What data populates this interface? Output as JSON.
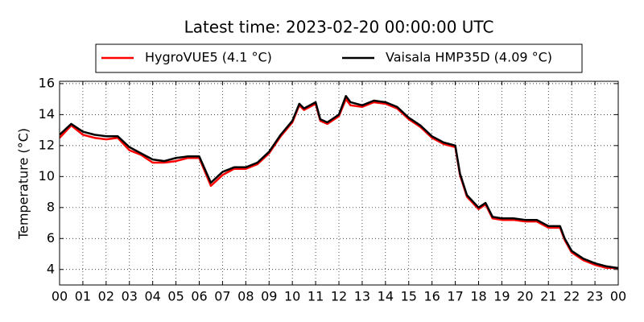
{
  "chart_data": {
    "type": "line",
    "title": "Latest time: 2023-02-20 00:00:00 UTC",
    "y_label": "Temperature (°C)",
    "x": [
      0,
      0.5,
      1,
      1.5,
      2,
      2.5,
      3,
      3.5,
      4,
      4.5,
      5,
      5.5,
      6,
      6.5,
      7,
      7.5,
      8,
      8.5,
      9,
      9.5,
      10,
      10.3,
      10.5,
      11,
      11.2,
      11.5,
      12,
      12.3,
      12.5,
      13,
      13.5,
      14,
      14.5,
      15,
      15.5,
      16,
      16.5,
      17,
      17.2,
      17.5,
      18,
      18.3,
      18.6,
      19,
      19.5,
      20,
      20.5,
      21,
      21.5,
      21.7,
      22,
      22.5,
      23,
      23.5,
      24
    ],
    "series": [
      {
        "name": "HygroVUE5 (4.1 °C)",
        "color": "#ff0000",
        "values": [
          12.5,
          13.3,
          12.7,
          12.5,
          12.4,
          12.5,
          11.7,
          11.4,
          10.9,
          10.9,
          11.0,
          11.2,
          11.2,
          9.4,
          10.1,
          10.5,
          10.5,
          10.8,
          11.5,
          12.6,
          13.5,
          14.6,
          14.3,
          14.7,
          13.6,
          13.4,
          13.9,
          15.0,
          14.6,
          14.5,
          14.8,
          14.7,
          14.4,
          13.7,
          13.2,
          12.5,
          12.1,
          11.9,
          10.1,
          8.7,
          7.9,
          8.2,
          7.3,
          7.2,
          7.2,
          7.1,
          7.1,
          6.7,
          6.7,
          5.9,
          5.1,
          4.6,
          4.3,
          4.1,
          4.1
        ]
      },
      {
        "name": "Vaisala HMP35D (4.09 °C)",
        "color": "#000000",
        "values": [
          12.7,
          13.4,
          12.9,
          12.7,
          12.6,
          12.6,
          11.9,
          11.5,
          11.1,
          11.0,
          11.2,
          11.3,
          11.3,
          9.6,
          10.3,
          10.6,
          10.6,
          10.9,
          11.6,
          12.7,
          13.6,
          14.7,
          14.4,
          14.8,
          13.7,
          13.5,
          14.0,
          15.2,
          14.8,
          14.6,
          14.9,
          14.8,
          14.5,
          13.8,
          13.3,
          12.6,
          12.2,
          12.0,
          10.2,
          8.8,
          8.0,
          8.3,
          7.4,
          7.3,
          7.3,
          7.2,
          7.2,
          6.8,
          6.8,
          6.0,
          5.2,
          4.7,
          4.4,
          4.2,
          4.09
        ]
      }
    ],
    "xlim": [
      0,
      24
    ],
    "xticks": [
      {
        "value": 0,
        "label": "00"
      },
      {
        "value": 1,
        "label": "01"
      },
      {
        "value": 2,
        "label": "02"
      },
      {
        "value": 3,
        "label": "03"
      },
      {
        "value": 4,
        "label": "04"
      },
      {
        "value": 5,
        "label": "05"
      },
      {
        "value": 6,
        "label": "06"
      },
      {
        "value": 7,
        "label": "07"
      },
      {
        "value": 8,
        "label": "08"
      },
      {
        "value": 9,
        "label": "09"
      },
      {
        "value": 10,
        "label": "10"
      },
      {
        "value": 11,
        "label": "11"
      },
      {
        "value": 12,
        "label": "12"
      },
      {
        "value": 13,
        "label": "13"
      },
      {
        "value": 14,
        "label": "14"
      },
      {
        "value": 15,
        "label": "15"
      },
      {
        "value": 16,
        "label": "16"
      },
      {
        "value": 17,
        "label": "17"
      },
      {
        "value": 18,
        "label": "18"
      },
      {
        "value": 19,
        "label": "19"
      },
      {
        "value": 20,
        "label": "20"
      },
      {
        "value": 21,
        "label": "21"
      },
      {
        "value": 22,
        "label": "22"
      },
      {
        "value": 23,
        "label": "23"
      },
      {
        "value": 24,
        "label": "00"
      }
    ],
    "ylim": [
      3,
      16.15
    ],
    "yticks": [
      4,
      6,
      8,
      10,
      12,
      14,
      16
    ],
    "grid": true,
    "legend": "top"
  }
}
